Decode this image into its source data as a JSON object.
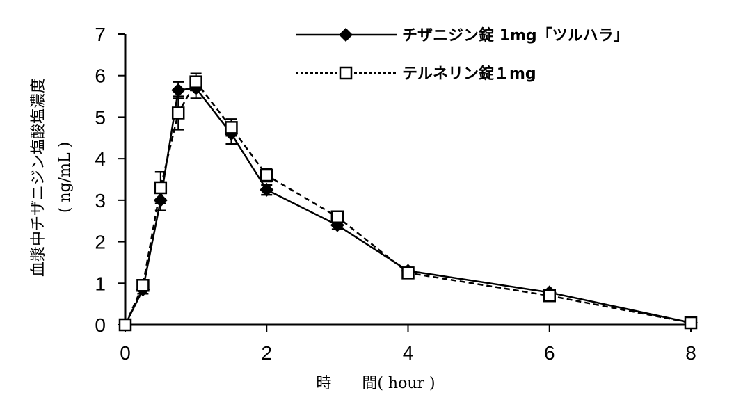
{
  "chart_data": {
    "type": "line",
    "title": "",
    "xlabel": "時　　間( hour )",
    "ylabel": "血漿中チザニジン塩酸塩濃度",
    "ylabel_unit": "( ng/mL )",
    "xlim": [
      0,
      8
    ],
    "ylim": [
      0,
      7
    ],
    "xticks": [
      0,
      2,
      4,
      6,
      8
    ],
    "yticks": [
      0,
      1,
      2,
      3,
      4,
      5,
      6,
      7
    ],
    "grid": false,
    "legend_position": "top-right",
    "x": [
      0,
      0.25,
      0.5,
      0.75,
      1,
      1.5,
      2,
      3,
      4,
      6,
      8
    ],
    "series": [
      {
        "name": "チザニジン錠 1mg「ツルハラ」",
        "marker": "filled-diamond",
        "line": "solid",
        "values": [
          0,
          0.85,
          3.0,
          5.65,
          5.7,
          4.6,
          3.25,
          2.4,
          1.3,
          0.78,
          0.05
        ],
        "error": [
          0,
          0.1,
          0.25,
          0.2,
          0.25,
          0.25,
          0.12,
          0.1,
          0.08,
          0.06,
          0.02
        ]
      },
      {
        "name": "テルネリン錠１mg",
        "marker": "open-square",
        "line": "dashed",
        "values": [
          0,
          0.95,
          3.3,
          5.1,
          5.85,
          4.75,
          3.6,
          2.6,
          1.25,
          0.7,
          0.05
        ],
        "error": [
          0,
          0.12,
          0.38,
          0.4,
          0.2,
          0.2,
          0.15,
          0.1,
          0.08,
          0.06,
          0.02
        ]
      }
    ]
  }
}
